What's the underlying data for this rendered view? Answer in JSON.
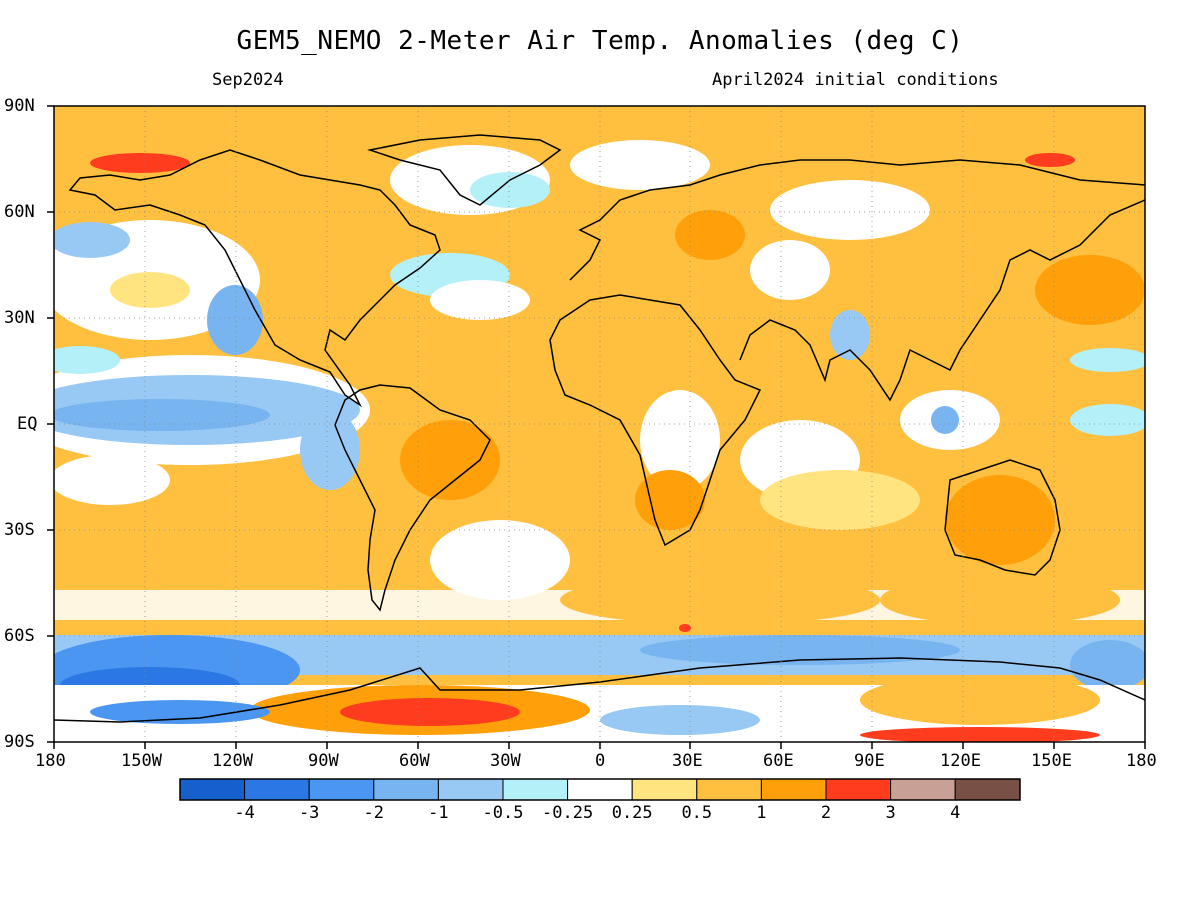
{
  "header": {
    "title": "GEM5_NEMO 2-Meter Air Temp. Anomalies (deg C)",
    "valid_month": "Sep2024",
    "initial_conditions": "April2024 initial conditions"
  },
  "map": {
    "projection": "cylindrical-equidistant",
    "lon_range": [
      -180,
      180
    ],
    "lat_range": [
      -90,
      90
    ],
    "lat_ticks": [
      "90N",
      "60N",
      "30N",
      "EQ",
      "30S",
      "60S",
      "90S"
    ],
    "lon_ticks": [
      "180",
      "150W",
      "120W",
      "90W",
      "60W",
      "30W",
      "0",
      "30E",
      "60E",
      "90E",
      "120E",
      "150E",
      "180"
    ],
    "gridlines": "dotted",
    "coastlines": true
  },
  "colorbar": {
    "labels": [
      "-4",
      "-3",
      "-2",
      "-1",
      "-0.5",
      "-0.25",
      "0.25",
      "0.5",
      "1",
      "2",
      "3",
      "4"
    ],
    "colors": [
      "#1560cc",
      "#2b78e4",
      "#4a96f0",
      "#78b4f0",
      "#98c8f4",
      "#b4f0f8",
      "#ffffff",
      "#ffe480",
      "#ffc040",
      "#ffa00a",
      "#ff3c1e",
      "#c8a096",
      "#785046"
    ]
  },
  "anomaly_regions": [
    {
      "name": "tropical-atlantic-africa",
      "value": "0.5"
    },
    {
      "name": "arctic",
      "value": "0.5"
    },
    {
      "name": "east-pacific",
      "value": "-0.5"
    },
    {
      "name": "southern-ocean",
      "value": "-1"
    },
    {
      "name": "antarctica-west",
      "value": "2"
    }
  ]
}
